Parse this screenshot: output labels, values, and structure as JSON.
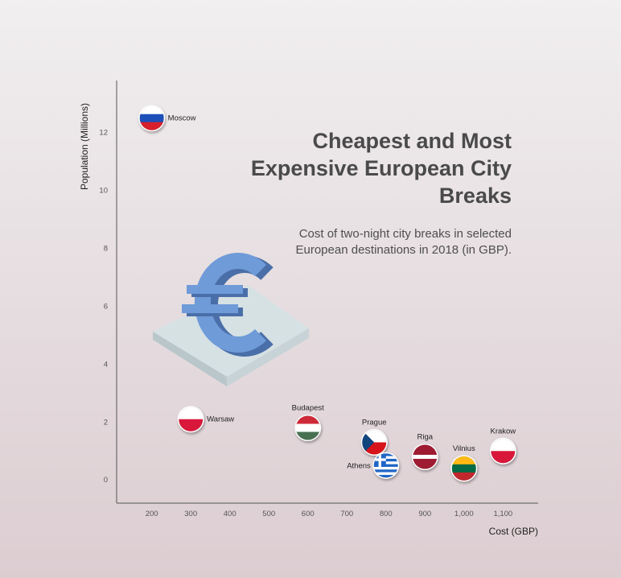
{
  "header": {
    "title": "Cheapest and Most Expensive European City Breaks",
    "subtitle": "Cost of two-night city breaks in selected European destinations in 2018 (in GBP)."
  },
  "chart_data": {
    "type": "scatter",
    "title": "Cheapest and Most Expensive European City Breaks",
    "subtitle": "Cost of two-night city breaks in selected European destinations in 2018 (in GBP).",
    "xlabel": "Cost (GBP)",
    "ylabel": "Population (Millions)",
    "xlim": [
      110,
      1190
    ],
    "ylim": [
      -0.8,
      13.8
    ],
    "x_ticks": [
      200,
      300,
      400,
      500,
      600,
      700,
      800,
      900,
      1000,
      1100
    ],
    "x_tick_labels": [
      "200",
      "300",
      "400",
      "500",
      "600",
      "700",
      "800",
      "900",
      "1,000",
      "1,100"
    ],
    "y_ticks": [
      0,
      2,
      4,
      6,
      8,
      10,
      12
    ],
    "y_tick_labels": [
      "0",
      "2",
      "4",
      "6",
      "8",
      "10",
      "12"
    ],
    "grid": false,
    "points": [
      {
        "label": "Moscow",
        "x": 200,
        "y": 12.5,
        "flag": "russia"
      },
      {
        "label": "Warsaw",
        "x": 300,
        "y": 2.1,
        "flag": "poland"
      },
      {
        "label": "Budapest",
        "x": 600,
        "y": 1.8,
        "flag": "hungary"
      },
      {
        "label": "Prague",
        "x": 770,
        "y": 1.3,
        "flag": "czechia"
      },
      {
        "label": "Athens",
        "x": 800,
        "y": 0.5,
        "flag": "greece"
      },
      {
        "label": "Riga",
        "x": 900,
        "y": 0.8,
        "flag": "latvia"
      },
      {
        "label": "Vilnius",
        "x": 1000,
        "y": 0.4,
        "flag": "lithuania"
      },
      {
        "label": "Krakow",
        "x": 1100,
        "y": 1.0,
        "flag": "poland"
      }
    ],
    "illustration": "euro-sign-icon"
  },
  "colors": {
    "axis": "#555555",
    "title": "#4a4a4a",
    "euro": "#6f9bd8",
    "russia_white": "#ffffff",
    "russia_blue": "#1d4fb8",
    "russia_red": "#d6202c",
    "poland_white": "#ffffff",
    "poland_red": "#d8173a",
    "hungary_red": "#ce2939",
    "hungary_white": "#ffffff",
    "hungary_green": "#477050",
    "czechia_blue": "#11457e",
    "czechia_red": "#d7141a",
    "greece_blue": "#1f66c6",
    "latvia_red": "#9e1b32",
    "lithuania_yellow": "#fdb913",
    "lithuania_green": "#006a44",
    "lithuania_red": "#c1272d"
  }
}
